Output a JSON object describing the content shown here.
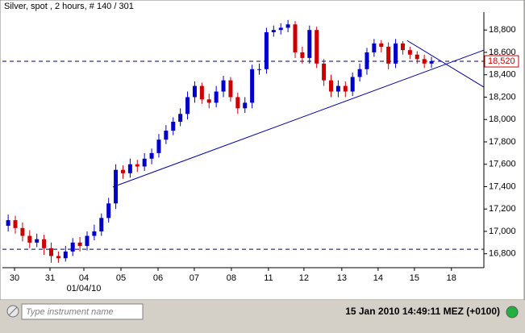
{
  "header": {
    "title": "Silver, spot , 2 hours, # 140 / 301"
  },
  "chart_data": {
    "type": "candlestick",
    "up_color": "#0000cc",
    "down_color": "#cc0000",
    "open": [
      17050,
      17100,
      17030,
      16960,
      16900,
      16930,
      16850,
      16780,
      16760,
      16820,
      16900,
      16870,
      16960,
      17000,
      17120,
      17250,
      17550,
      17520,
      17600,
      17580,
      17650,
      17700,
      17820,
      17900,
      17980,
      18050,
      18200,
      18300,
      18180,
      18150,
      18250,
      18350,
      18200,
      18100,
      18150,
      18450,
      18450,
      18780,
      18800,
      18820,
      18850,
      18600,
      18550,
      18800,
      18500,
      18350,
      18250,
      18300,
      18250,
      18380,
      18450,
      18600,
      18680,
      18650,
      18500,
      18680,
      18620,
      18580,
      18540,
      18500
    ],
    "high": [
      17150,
      17140,
      17080,
      17010,
      16980,
      16970,
      16900,
      16820,
      16870,
      16940,
      16950,
      17000,
      17060,
      17160,
      17300,
      17600,
      17590,
      17650,
      17640,
      17700,
      17740,
      17870,
      17950,
      18020,
      18100,
      18250,
      18340,
      18330,
      18230,
      18300,
      18390,
      18380,
      18240,
      18200,
      18490,
      18500,
      18820,
      18840,
      18860,
      18890,
      18880,
      18650,
      18840,
      18830,
      18540,
      18400,
      18350,
      18340,
      18420,
      18500,
      18640,
      18720,
      18710,
      18690,
      18720,
      18700,
      18650,
      18610,
      18580,
      18560
    ],
    "low": [
      17000,
      16980,
      16910,
      16850,
      16860,
      16790,
      16720,
      16720,
      16730,
      16780,
      16820,
      16830,
      16920,
      16960,
      17080,
      17200,
      17470,
      17480,
      17530,
      17540,
      17600,
      17660,
      17780,
      17860,
      17940,
      18000,
      18150,
      18140,
      18100,
      18110,
      18200,
      18160,
      18050,
      18060,
      18100,
      18400,
      18410,
      18740,
      18760,
      18780,
      18550,
      18500,
      18500,
      18460,
      18300,
      18200,
      18200,
      18200,
      18210,
      18340,
      18400,
      18560,
      18600,
      18450,
      18460,
      18580,
      18540,
      18500,
      18460,
      18460
    ],
    "close": [
      17100,
      17030,
      16960,
      16900,
      16930,
      16850,
      16780,
      16760,
      16820,
      16900,
      16870,
      16960,
      17000,
      17120,
      17250,
      17550,
      17520,
      17600,
      17580,
      17650,
      17700,
      17820,
      17900,
      17980,
      18050,
      18200,
      18300,
      18180,
      18150,
      18250,
      18350,
      18200,
      18100,
      18150,
      18450,
      18450,
      18780,
      18800,
      18820,
      18850,
      18600,
      18550,
      18800,
      18500,
      18350,
      18250,
      18300,
      18250,
      18380,
      18450,
      18600,
      18680,
      18650,
      18500,
      18680,
      18620,
      18580,
      18540,
      18500,
      18520
    ],
    "xlim": [
      -0.8,
      66.3
    ],
    "xticks": [
      {
        "value": 0.89,
        "label": "30"
      },
      {
        "value": 5.83,
        "label": "31"
      },
      {
        "value": 10.55,
        "label": "04"
      },
      {
        "value": 15.72,
        "label": "05"
      },
      {
        "value": 20.89,
        "label": "06"
      },
      {
        "value": 25.94,
        "label": "07"
      },
      {
        "value": 31.11,
        "label": "08"
      },
      {
        "value": 36.28,
        "label": "11"
      },
      {
        "value": 41.22,
        "label": "12"
      },
      {
        "value": 46.5,
        "label": "13"
      },
      {
        "value": 51.56,
        "label": "14"
      },
      {
        "value": 56.62,
        "label": "15"
      },
      {
        "value": 61.78,
        "label": "18"
      }
    ],
    "x_sublabel": {
      "value": 10.55,
      "label": "01/04/10"
    },
    "ylim": [
      16690,
      18960
    ],
    "yticks": [
      {
        "value": 16800,
        "label": "16,800"
      },
      {
        "value": 17000,
        "label": "17,000"
      },
      {
        "value": 17200,
        "label": "17,200"
      },
      {
        "value": 17400,
        "label": "17,400"
      },
      {
        "value": 17600,
        "label": "17,600"
      },
      {
        "value": 17800,
        "label": "17,800"
      },
      {
        "value": 18000,
        "label": "18,000"
      },
      {
        "value": 18200,
        "label": "18,200"
      },
      {
        "value": 18400,
        "label": "18,400"
      },
      {
        "value": 18600,
        "label": "18,600"
      },
      {
        "value": 18800,
        "label": "18,800"
      }
    ],
    "current_price": {
      "value": 18520,
      "label": "18,520"
    },
    "levels": [
      16840
    ],
    "trendlines": [
      {
        "x": [
          14.6,
          66.3
        ],
        "y": [
          17397,
          18620
        ]
      },
      {
        "x": [
          55.6,
          66.3
        ],
        "y": [
          18706,
          18289
        ]
      }
    ],
    "trendline_color": "#0000aa"
  },
  "footer": {
    "search_placeholder": "Type instrument name",
    "timestamp": "15 Jan 2010 14:49:11  MEZ (+0100)"
  }
}
